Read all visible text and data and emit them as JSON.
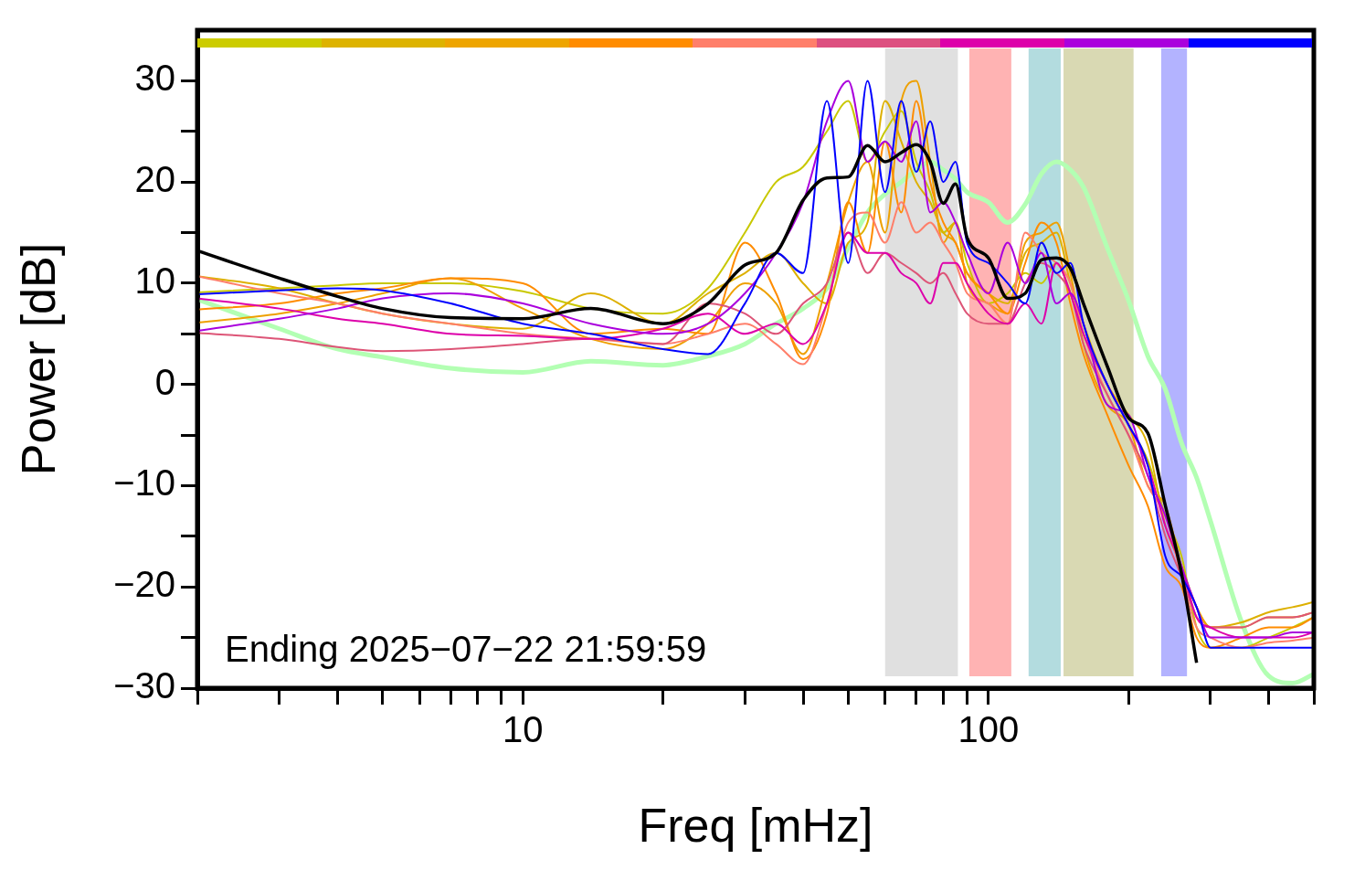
{
  "chart_data": {
    "type": "line",
    "xlabel": "Freq [mHz]",
    "ylabel": "Power [dB]",
    "annotations": [
      "Ending 2025−07−22 21:59:59"
    ],
    "log": "x",
    "grid": false,
    "legend": false,
    "line_style": "solid",
    "xlim": [
      2,
      500
    ],
    "ylim": [
      -30,
      35
    ],
    "xticks": [
      {
        "value": 2,
        "label": null
      },
      {
        "value": 3,
        "label": null
      },
      {
        "value": 4,
        "label": null
      },
      {
        "value": 5,
        "label": null
      },
      {
        "value": 6,
        "label": null
      },
      {
        "value": 7,
        "label": null
      },
      {
        "value": 8,
        "label": null
      },
      {
        "value": 9,
        "label": null
      },
      10,
      {
        "value": 20,
        "label": null
      },
      {
        "value": 30,
        "label": null
      },
      {
        "value": 40,
        "label": null
      },
      {
        "value": 50,
        "label": null
      },
      {
        "value": 60,
        "label": null
      },
      {
        "value": 70,
        "label": null
      },
      {
        "value": 80,
        "label": null
      },
      {
        "value": 90,
        "label": null
      },
      100,
      {
        "value": 200,
        "label": null
      },
      {
        "value": 300,
        "label": null
      },
      {
        "value": 400,
        "label": null
      },
      {
        "value": 500,
        "label": null
      }
    ],
    "yticks": [
      -30,
      {
        "value": -25,
        "label": null
      },
      -20,
      {
        "value": -15,
        "label": null
      },
      -10,
      {
        "value": -5,
        "label": null
      },
      0,
      {
        "value": 5,
        "label": null
      },
      10,
      {
        "value": 15,
        "label": null
      },
      20,
      {
        "value": 25,
        "label": null
      },
      30
    ],
    "bands": [
      {
        "axis": "x",
        "from": 60,
        "to": 86,
        "color": "#e0e0e0"
      },
      {
        "axis": "x",
        "from": 91,
        "to": 112,
        "color": "#ffb3b3"
      },
      {
        "axis": "x",
        "from": 122,
        "to": 143,
        "color": "#b3dcdf"
      },
      {
        "axis": "x",
        "from": 145,
        "to": 205,
        "color": "#d9d9b3"
      },
      {
        "axis": "x",
        "from": 235,
        "to": 267,
        "color": "#b3b3ff"
      }
    ],
    "x": [
      2,
      3,
      4,
      5,
      7,
      10,
      14,
      20,
      25,
      30,
      35,
      40,
      45,
      50,
      55,
      60,
      65,
      70,
      75,
      80,
      85,
      90,
      100,
      110,
      120,
      130,
      140,
      150,
      160,
      180,
      200,
      220,
      240,
      260,
      280,
      300,
      350,
      400,
      450,
      500
    ],
    "series": [
      {
        "color": "#b3ffb3",
        "values": [
          8.4,
          5.5,
          3.5,
          2.7,
          1.6,
          1.2,
          2.3,
          1.9,
          2.8,
          4.0,
          6.0,
          7.5,
          9.5,
          13.5,
          17,
          18.8,
          20,
          21.2,
          22,
          21.2,
          20.3,
          19,
          18,
          16,
          17.8,
          20.8,
          22,
          21.2,
          19.5,
          13.5,
          8.3,
          2.8,
          -0.5,
          -5.8,
          -9.2,
          -13.5,
          -23.5,
          -28.8,
          -29.5,
          -28.6
        ]
      },
      {
        "color": "#c8c800",
        "values": [
          9.1,
          9.5,
          9.8,
          10,
          10,
          9.2,
          7.5,
          7,
          9.5,
          15,
          20,
          21.5,
          25,
          28,
          22,
          25,
          27,
          22,
          19,
          15,
          16,
          12,
          8,
          9,
          11,
          10,
          12,
          9,
          5,
          0,
          -4,
          -7.5,
          -13,
          -17,
          -24,
          -26,
          -26,
          -25,
          -24,
          -23
        ]
      },
      {
        "color": "#ddb000",
        "values": [
          10.7,
          9.5,
          8,
          7,
          6,
          5.5,
          9,
          6,
          9,
          11,
          13,
          10,
          8,
          14,
          16,
          28,
          24,
          20,
          18,
          15,
          14,
          11,
          9,
          8,
          13,
          14,
          15,
          10,
          6,
          0,
          -3,
          -6,
          -14,
          -18,
          -22,
          -24,
          -23.5,
          -22.5,
          -22,
          -21.5
        ]
      },
      {
        "color": "#eea000",
        "values": [
          6.1,
          7,
          8,
          9,
          10.5,
          7.5,
          4.5,
          3.5,
          6,
          10,
          8,
          3,
          10,
          18,
          22,
          15,
          28,
          30,
          22,
          14,
          16,
          10,
          8,
          7,
          14,
          15,
          16,
          11,
          4,
          -2,
          -4,
          -10,
          -12,
          -18,
          -22,
          -24,
          -24,
          -23,
          -23,
          -22.5
        ]
      },
      {
        "color": "#ff8c00",
        "values": [
          7.4,
          8,
          9,
          9.5,
          10.5,
          10,
          5,
          5.5,
          5,
          14,
          9,
          2.5,
          7,
          18,
          13,
          24,
          17,
          28,
          20,
          16,
          14,
          11,
          9,
          7,
          12,
          16,
          14,
          8,
          3,
          -3,
          -8,
          -12,
          -18,
          -20,
          -25,
          -26,
          -25,
          -24,
          -24,
          -23
        ]
      },
      {
        "color": "#ff7f6a",
        "values": [
          10.7,
          9,
          8,
          7,
          6,
          5,
          4.5,
          4,
          5,
          6,
          4,
          2,
          8,
          16,
          17,
          14,
          18,
          15,
          16,
          14,
          12,
          9,
          8,
          6,
          15,
          13,
          12,
          10,
          5,
          -1,
          -5,
          -10,
          -13,
          -19,
          -24,
          -25,
          -26,
          -25.5,
          -25.3,
          -25
        ]
      },
      {
        "color": "#dd5577",
        "values": [
          5.1,
          4.5,
          3.7,
          3.3,
          3.5,
          4,
          4.5,
          4,
          8,
          7,
          5,
          8,
          10,
          15,
          11,
          13,
          12,
          11,
          10,
          11,
          9,
          7,
          6,
          6,
          10,
          12,
          11,
          9,
          4,
          -1,
          -5,
          -9,
          -15,
          -19,
          -23,
          -24,
          -24,
          -23,
          -23,
          -22.5
        ]
      },
      {
        "color": "#dd00aa",
        "values": [
          8.5,
          7.5,
          6.5,
          6,
          5,
          4.8,
          4.5,
          5.5,
          7,
          5,
          6,
          4,
          8,
          15,
          13,
          13,
          11,
          10,
          8,
          12,
          12,
          10,
          7,
          6,
          8,
          6,
          12,
          9,
          5,
          0,
          -4,
          -8,
          -14,
          -18,
          -23,
          -24,
          -25,
          -25,
          -25,
          -24.5
        ]
      },
      {
        "color": "#aa00dd",
        "values": [
          5.3,
          6.5,
          7.5,
          8.5,
          9,
          8,
          6,
          5,
          6,
          9,
          13,
          18,
          26,
          30,
          22,
          24,
          22,
          26,
          17,
          18,
          16,
          13,
          9,
          14,
          10,
          13,
          8,
          9,
          6,
          -2,
          -3,
          -9,
          -13,
          -18,
          -22,
          -25,
          -25,
          -25,
          -24.5,
          -24.5
        ]
      },
      {
        "color": "#0000ff",
        "values": [
          8.9,
          9.3,
          9.5,
          9.3,
          8,
          6,
          5,
          3.5,
          3,
          8,
          13,
          11,
          28,
          12,
          30,
          19,
          28,
          21,
          26,
          20,
          22,
          14,
          12,
          10,
          8,
          14,
          11,
          12,
          6,
          0,
          -4,
          -8,
          -17,
          -19,
          -22,
          -26,
          -26,
          -26,
          -26,
          -26
        ]
      },
      {
        "color": "#000000",
        "values": [
          13.2,
          10.5,
          8.7,
          7.5,
          6.6,
          6.5,
          7.5,
          6,
          8,
          11.8,
          13,
          18.2,
          20.4,
          20.5,
          23.6,
          22,
          22.9,
          23.7,
          22,
          17.9,
          19.8,
          14.5,
          12.5,
          8.5,
          9,
          12.3,
          12.5,
          11.5,
          8,
          1.8,
          -3.3,
          -4.8,
          -12,
          -18.7,
          -27.5,
          null,
          null,
          null,
          null,
          null
        ]
      }
    ]
  }
}
